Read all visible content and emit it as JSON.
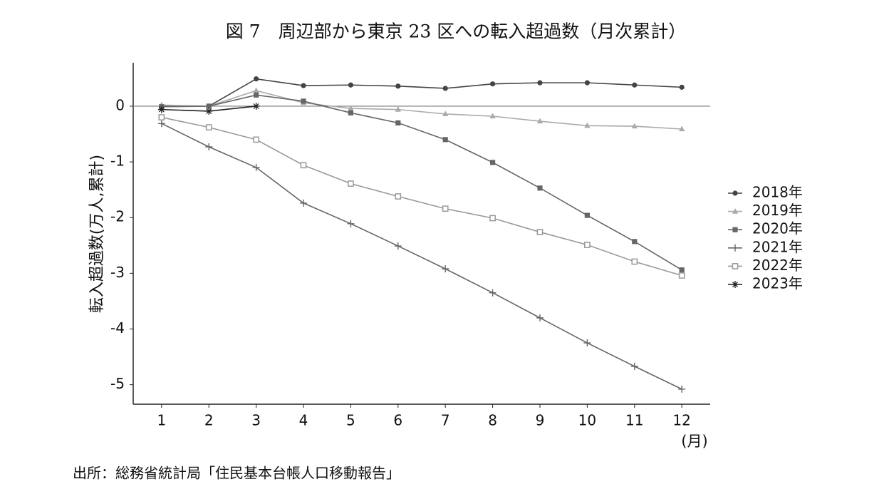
{
  "chart_data": {
    "type": "line",
    "title": "図 7　周辺部から東京 23 区への転入超過数（月次累計）",
    "source": "出所：総務省統計局「住民基本台帳人口移動報告」",
    "ylabel": "転入超過数(万人,累計)",
    "xlabel": "(月)",
    "x": [
      1,
      2,
      3,
      4,
      5,
      6,
      7,
      8,
      9,
      10,
      11,
      12
    ],
    "xlim": [
      0.4,
      12.6
    ],
    "xticks": [
      1,
      2,
      3,
      4,
      5,
      6,
      7,
      8,
      9,
      10,
      11,
      12
    ],
    "ylim": [
      -5.35,
      0.78
    ],
    "yticks": [
      0,
      -1,
      -2,
      -3,
      -4,
      -5
    ],
    "hline": 0,
    "legend": "right",
    "series": [
      {
        "name": "2018年",
        "color": "#444444",
        "marker": "circle",
        "values": [
          0.0,
          0.0,
          0.49,
          0.37,
          0.38,
          0.36,
          0.32,
          0.4,
          0.42,
          0.42,
          0.38,
          0.34
        ]
      },
      {
        "name": "2019年",
        "color": "#aaaaaa",
        "marker": "triangle",
        "values": [
          0.02,
          0.0,
          0.28,
          0.06,
          -0.04,
          -0.06,
          -0.14,
          -0.18,
          -0.27,
          -0.35,
          -0.36,
          -0.41
        ]
      },
      {
        "name": "2020年",
        "color": "#666666",
        "marker": "square",
        "values": [
          -0.01,
          0.0,
          0.2,
          0.09,
          -0.12,
          -0.3,
          -0.6,
          -1.01,
          -1.47,
          -1.96,
          -2.43,
          -2.94
        ]
      },
      {
        "name": "2021年",
        "color": "#666666",
        "marker": "plus",
        "values": [
          -0.31,
          -0.73,
          -1.1,
          -1.74,
          -2.11,
          -2.51,
          -2.92,
          -3.35,
          -3.8,
          -4.25,
          -4.67,
          -5.08
        ]
      },
      {
        "name": "2022年",
        "color": "#999999",
        "marker": "opensquare",
        "values": [
          -0.2,
          -0.38,
          -0.6,
          -1.06,
          -1.39,
          -1.62,
          -1.84,
          -2.01,
          -2.26,
          -2.49,
          -2.79,
          -3.04
        ]
      },
      {
        "name": "2023年",
        "color": "#222222",
        "marker": "star",
        "values": [
          -0.06,
          -0.09,
          0.0,
          null,
          null,
          null,
          null,
          null,
          null,
          null,
          null,
          null
        ]
      }
    ]
  }
}
